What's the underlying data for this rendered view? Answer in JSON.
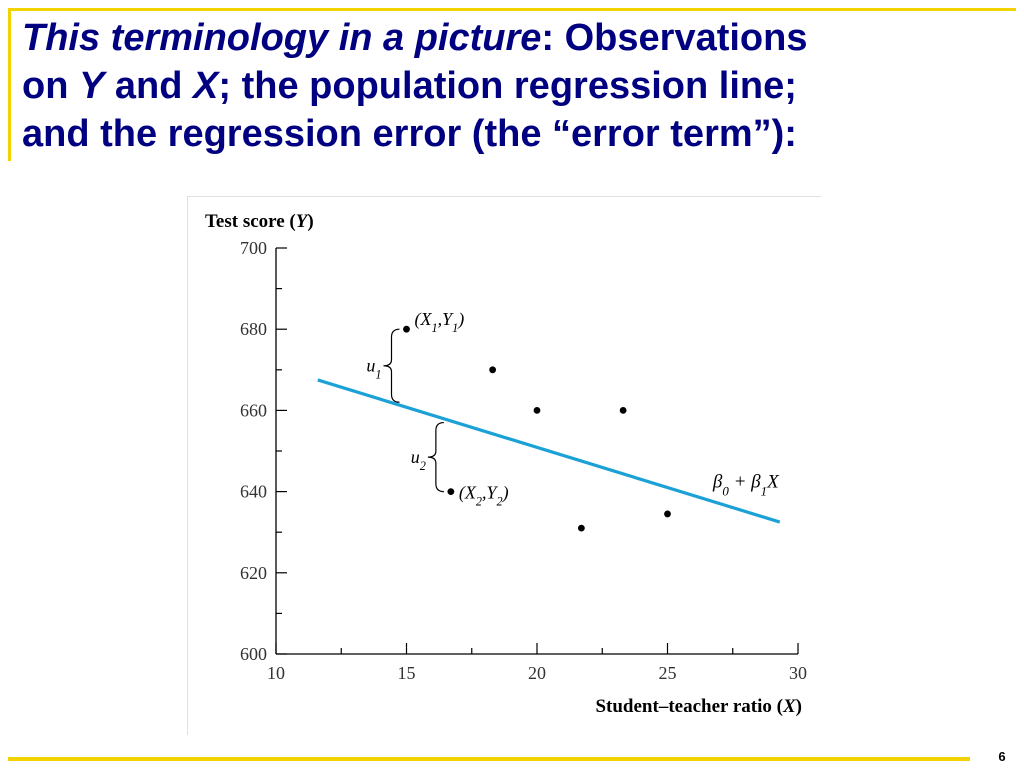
{
  "slide": {
    "title_italic": "This terminology in a picture",
    "title_rest": ": Observations",
    "title_line2_on": "on ",
    "title_line2_y": "Y",
    "title_line2_and": " and ",
    "title_line2_x": "X",
    "title_line2_rest": "; the population regression line;",
    "title_line3": "and the regression error (the “error term”):",
    "page_number": "6",
    "accent_color": "#f2d200",
    "title_color": "#000080"
  },
  "chart_data": {
    "type": "scatter",
    "ylabel": "Test score (Y)",
    "xlabel": "Student–teacher ratio (X)",
    "xlim": [
      10,
      30
    ],
    "ylim": [
      600,
      700
    ],
    "xticks": [
      10,
      15,
      20,
      25,
      30
    ],
    "yticks": [
      600,
      620,
      640,
      660,
      680,
      700
    ],
    "grid": false,
    "points": [
      {
        "x": 15,
        "y": 680,
        "label": "(X1,Y1)"
      },
      {
        "x": 16.7,
        "y": 640,
        "label": "(X2,Y2)"
      },
      {
        "x": 18.3,
        "y": 670,
        "label": ""
      },
      {
        "x": 20,
        "y": 660,
        "label": ""
      },
      {
        "x": 21.7,
        "y": 631,
        "label": ""
      },
      {
        "x": 23.3,
        "y": 660,
        "label": ""
      },
      {
        "x": 25,
        "y": 634.5,
        "label": ""
      }
    ],
    "regression_line": {
      "x": [
        11.6,
        29.3
      ],
      "y": [
        667.5,
        632.5
      ],
      "label": "β0 + β1X",
      "color": "#1ba1d6"
    },
    "annotations": [
      {
        "label": "u1",
        "x": 15,
        "y_from": 662,
        "y_to": 680
      },
      {
        "label": "u2",
        "x": 16.7,
        "y_from": 640,
        "y_to": 657
      }
    ]
  }
}
